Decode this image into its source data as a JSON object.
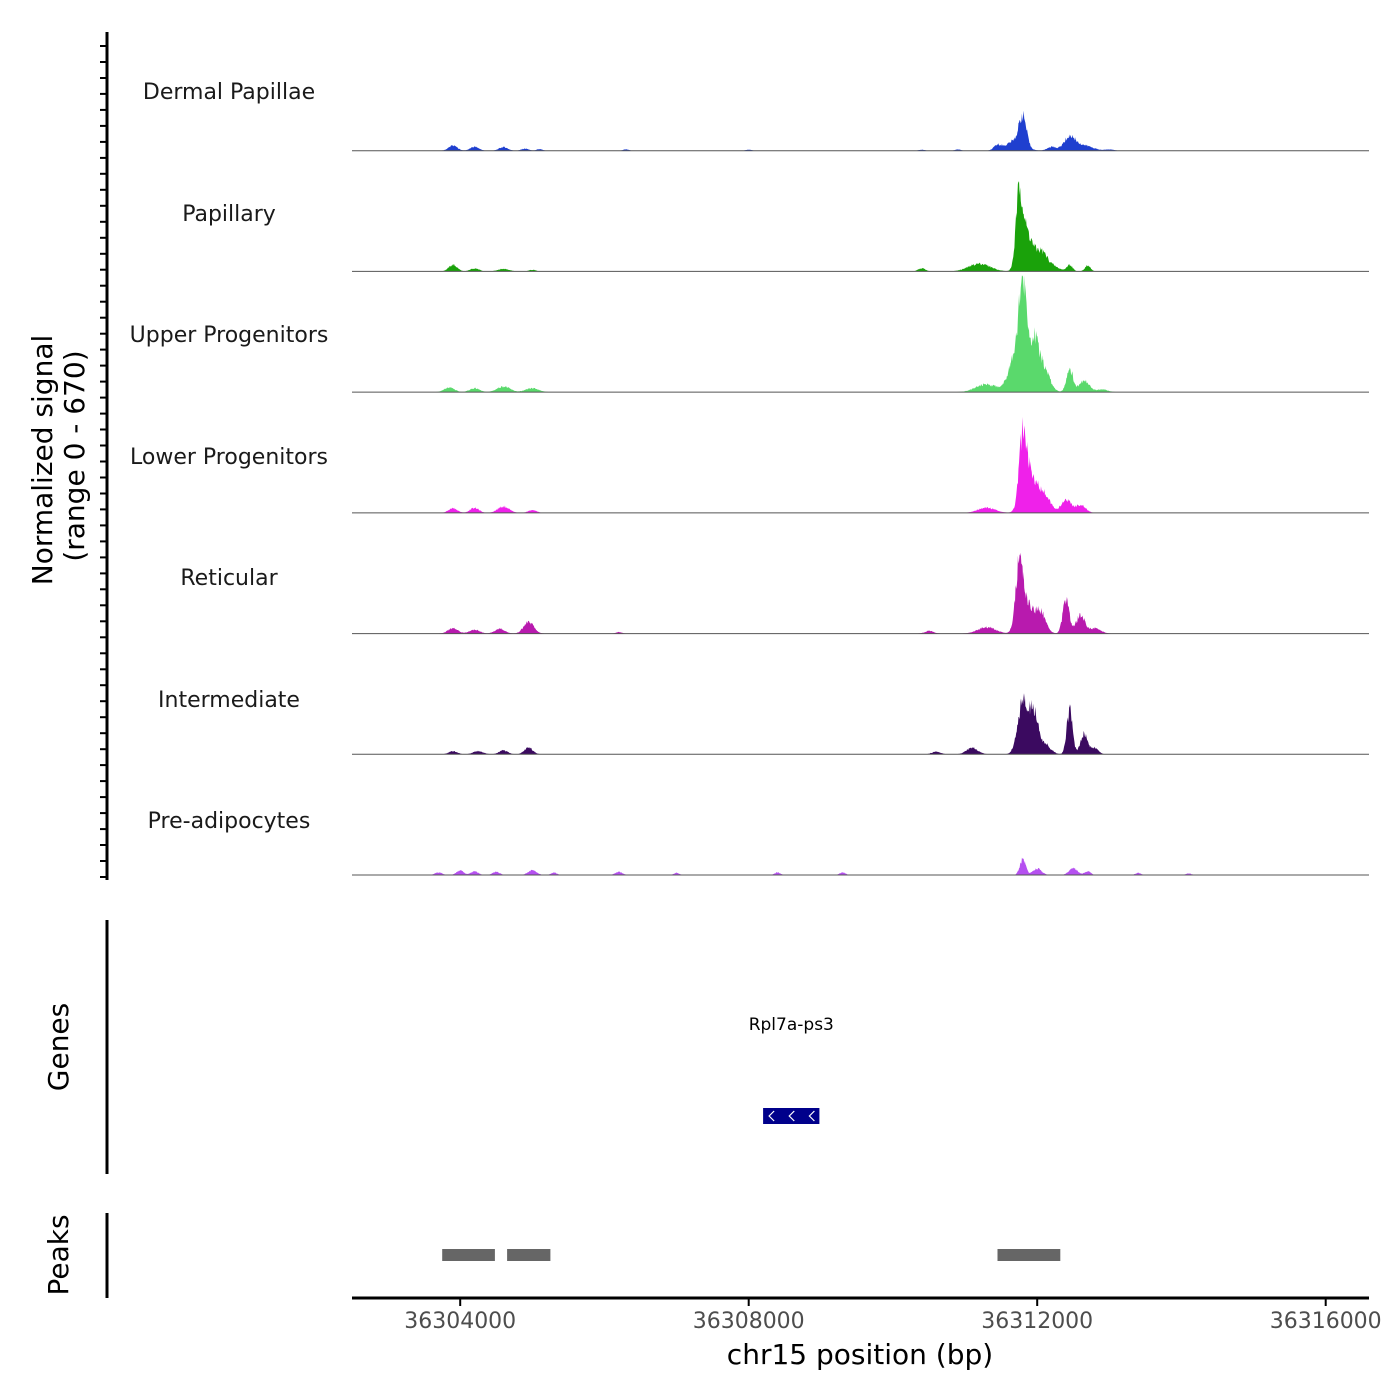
{
  "chart_data": {
    "type": "area",
    "title": "",
    "chromosome": "chr15",
    "xlabel": "chr15 position (bp)",
    "ylabel_line1": "Normalized signal",
    "ylabel_line2": "(range 0 - 670)",
    "ylim": [
      0,
      670
    ],
    "xlim": [
      36302500,
      36316600
    ],
    "x_ticks": [
      36304000,
      36308000,
      36312000,
      36316000
    ],
    "x_tick_labels": [
      "36304000",
      "36308000",
      "36312000",
      "36316000"
    ],
    "tracks": [
      {
        "name": "Dermal Papillae",
        "color": "#1f3fcf",
        "peaks": [
          [
            36303900,
            20,
            60
          ],
          [
            36304200,
            15,
            60
          ],
          [
            36304600,
            14,
            60
          ],
          [
            36304900,
            8,
            50
          ],
          [
            36305100,
            6,
            40
          ],
          [
            36306300,
            5,
            40
          ],
          [
            36308000,
            4,
            40
          ],
          [
            36310400,
            4,
            40
          ],
          [
            36310900,
            5,
            40
          ],
          [
            36311450,
            20,
            50
          ],
          [
            36311800,
            110,
            50
          ],
          [
            36311700,
            40,
            120
          ],
          [
            36312200,
            15,
            60
          ],
          [
            36312450,
            52,
            80
          ],
          [
            36312650,
            20,
            120
          ],
          [
            36313000,
            5,
            60
          ]
        ]
      },
      {
        "name": "Papillary",
        "color": "#1aa20a",
        "peaks": [
          [
            36303900,
            25,
            60
          ],
          [
            36304200,
            12,
            60
          ],
          [
            36304600,
            10,
            80
          ],
          [
            36305000,
            6,
            50
          ],
          [
            36310400,
            12,
            50
          ],
          [
            36311200,
            30,
            150
          ],
          [
            36311750,
            260,
            45
          ],
          [
            36311850,
            150,
            80
          ],
          [
            36312050,
            70,
            80
          ],
          [
            36312200,
            20,
            100
          ],
          [
            36312450,
            25,
            40
          ],
          [
            36312700,
            22,
            40
          ]
        ]
      },
      {
        "name": "Upper Progenitors",
        "color": "#5ad96c",
        "peaks": [
          [
            36303850,
            18,
            70
          ],
          [
            36304200,
            15,
            70
          ],
          [
            36304600,
            22,
            90
          ],
          [
            36305000,
            15,
            90
          ],
          [
            36311300,
            30,
            150
          ],
          [
            36311700,
            150,
            90
          ],
          [
            36311800,
            360,
            50
          ],
          [
            36311950,
            200,
            70
          ],
          [
            36312100,
            80,
            80
          ],
          [
            36312450,
            90,
            45
          ],
          [
            36312650,
            45,
            70
          ],
          [
            36312900,
            10,
            80
          ]
        ]
      },
      {
        "name": "Lower Progenitors",
        "color": "#ef21ea",
        "peaks": [
          [
            36303900,
            18,
            60
          ],
          [
            36304200,
            20,
            60
          ],
          [
            36304600,
            25,
            80
          ],
          [
            36305000,
            10,
            60
          ],
          [
            36311300,
            20,
            120
          ],
          [
            36311800,
            250,
            50
          ],
          [
            36311900,
            150,
            90
          ],
          [
            36312100,
            70,
            80
          ],
          [
            36312400,
            50,
            70
          ],
          [
            36312600,
            30,
            70
          ]
        ]
      },
      {
        "name": "Reticular",
        "color": "#b81aae",
        "peaks": [
          [
            36303900,
            20,
            70
          ],
          [
            36304200,
            15,
            70
          ],
          [
            36304550,
            18,
            70
          ],
          [
            36304950,
            45,
            70
          ],
          [
            36306200,
            6,
            40
          ],
          [
            36310500,
            10,
            60
          ],
          [
            36311300,
            25,
            120
          ],
          [
            36311750,
            230,
            50
          ],
          [
            36311850,
            120,
            90
          ],
          [
            36312050,
            80,
            70
          ],
          [
            36312400,
            130,
            45
          ],
          [
            36312600,
            70,
            60
          ],
          [
            36312800,
            20,
            80
          ]
        ]
      },
      {
        "name": "Intermediate",
        "color": "#3b0a60",
        "peaks": [
          [
            36303900,
            12,
            60
          ],
          [
            36304250,
            12,
            70
          ],
          [
            36304600,
            15,
            60
          ],
          [
            36304950,
            25,
            60
          ],
          [
            36310600,
            10,
            60
          ],
          [
            36311100,
            25,
            80
          ],
          [
            36311800,
            200,
            70
          ],
          [
            36311950,
            150,
            60
          ],
          [
            36312100,
            40,
            80
          ],
          [
            36312450,
            170,
            40
          ],
          [
            36312650,
            80,
            50
          ],
          [
            36312800,
            25,
            50
          ]
        ]
      },
      {
        "name": "Pre-adipocytes",
        "color": "#b550f0",
        "peaks": [
          [
            36303700,
            10,
            50
          ],
          [
            36304000,
            18,
            50
          ],
          [
            36304200,
            15,
            50
          ],
          [
            36304500,
            12,
            50
          ],
          [
            36305000,
            18,
            60
          ],
          [
            36305300,
            10,
            40
          ],
          [
            36306200,
            12,
            50
          ],
          [
            36307000,
            8,
            40
          ],
          [
            36308400,
            10,
            40
          ],
          [
            36309300,
            10,
            40
          ],
          [
            36311800,
            60,
            40
          ],
          [
            36312000,
            25,
            60
          ],
          [
            36312500,
            25,
            60
          ],
          [
            36312700,
            15,
            40
          ],
          [
            36313400,
            8,
            40
          ],
          [
            36314100,
            6,
            40
          ]
        ]
      }
    ],
    "genes": [
      {
        "name": "Rpl7a-ps3",
        "start": 36308200,
        "end": 36308980,
        "strand": "-",
        "color": "#00008b"
      }
    ],
    "peaks_regions": [
      {
        "start": 36303750,
        "end": 36304480
      },
      {
        "start": 36304650,
        "end": 36305250
      },
      {
        "start": 36311450,
        "end": 36312320
      }
    ],
    "genes_track_label": "Genes",
    "peaks_track_label": "Peaks"
  }
}
